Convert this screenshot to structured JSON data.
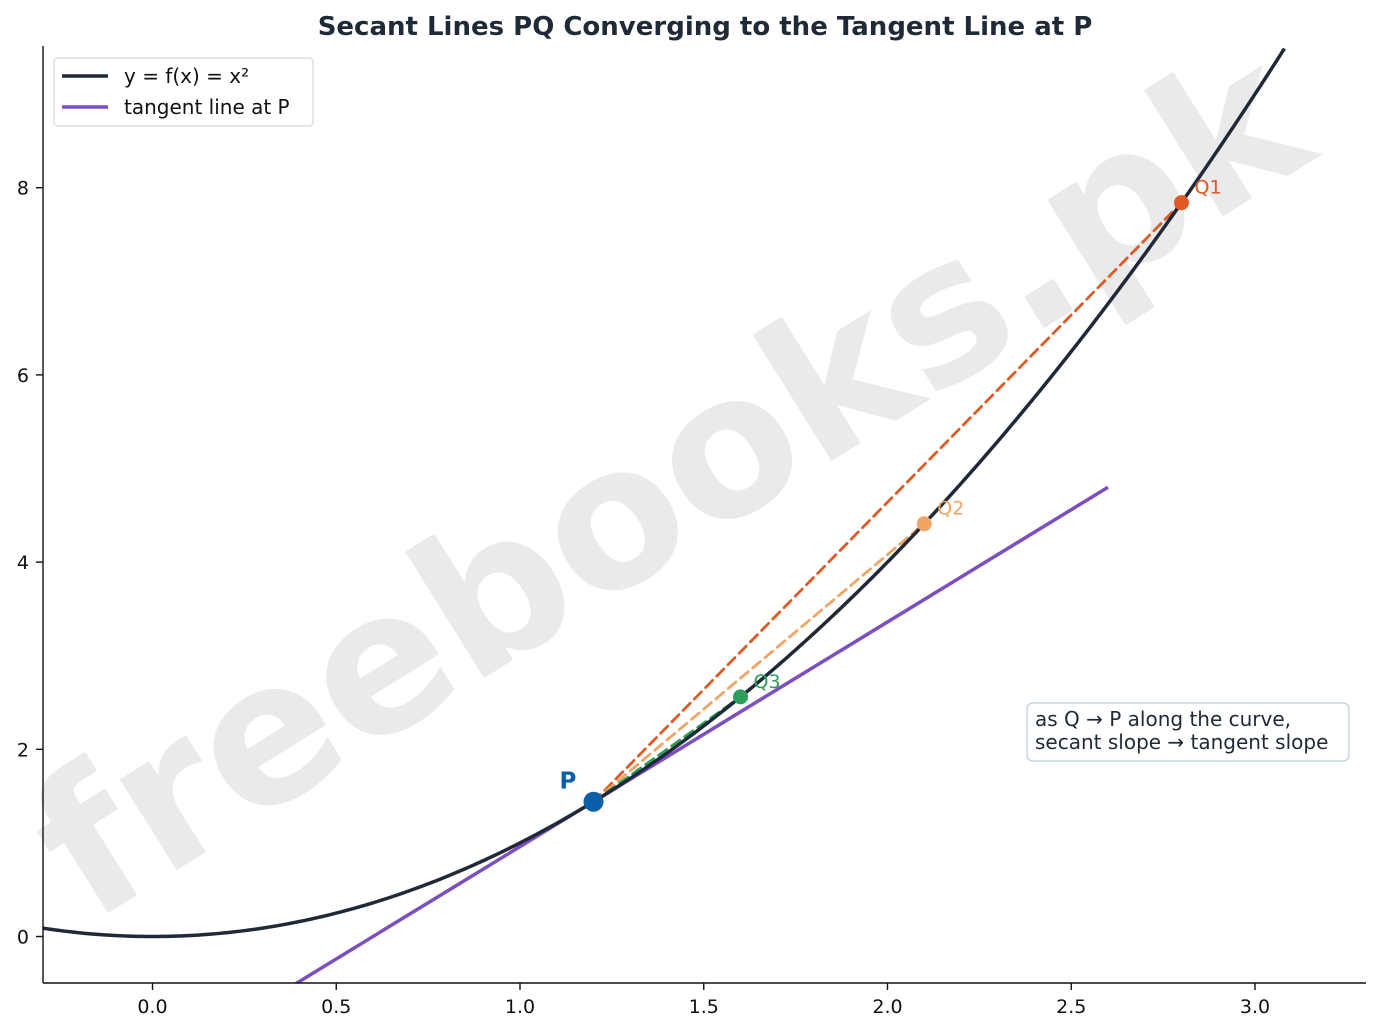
{
  "chart_data": {
    "type": "line",
    "title": "Secant Lines PQ Converging to the Tangent Line at P",
    "xlabel": "",
    "ylabel": "",
    "xlim": [
      -0.3,
      3.3
    ],
    "ylim": [
      -0.5,
      9.5
    ],
    "x_ticks": [
      "0.0",
      "0.5",
      "1.0",
      "1.5",
      "2.0",
      "2.5",
      "3.0"
    ],
    "y_ticks": [
      "0",
      "2",
      "4",
      "6",
      "8"
    ],
    "grid": false,
    "legend_position": "top-left",
    "legend": [
      {
        "label": "y = f(x) = x²",
        "color": "#1f2937"
      },
      {
        "label": "tangent line at P",
        "color": "#7b4fbf"
      }
    ],
    "curve": {
      "function": "x^2",
      "x_range": [
        -0.3,
        3.08
      ],
      "color": "#1f2937"
    },
    "tangent_line": {
      "slope": 2.4,
      "through": [
        1.2,
        1.44
      ],
      "x_range": [
        0.38,
        2.6
      ],
      "color": "#7b4fbf"
    },
    "point_p": {
      "label": "P",
      "x": 1.2,
      "y": 1.44,
      "color": "#0b5ea8"
    },
    "secant_points": [
      {
        "label": "Q1",
        "x": 2.8,
        "y": 7.84,
        "color": "#e05a24"
      },
      {
        "label": "Q2",
        "x": 2.1,
        "y": 4.41,
        "color": "#f0a466"
      },
      {
        "label": "Q3",
        "x": 1.6,
        "y": 2.56,
        "color": "#2e9e5b"
      }
    ],
    "annotation": [
      "as Q → P along the curve,",
      "secant slope → tangent slope"
    ],
    "watermark": "freebooks.pk"
  }
}
